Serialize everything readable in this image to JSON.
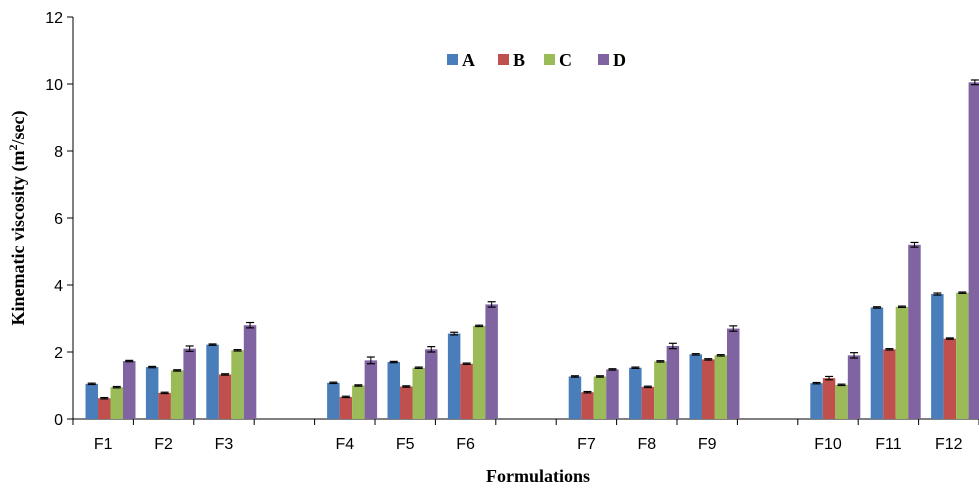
{
  "chart_data": {
    "type": "bar",
    "title": "",
    "xlabel": "Formulations",
    "ylabel_main": "Kinematic viscosity (m",
    "ylabel_sup": "2",
    "ylabel_end": "/sec)",
    "ylim": [
      0,
      12
    ],
    "yticks": [
      "0",
      "2",
      "4",
      "6",
      "8",
      "10",
      "12"
    ],
    "legend_position": "top-center",
    "colors": {
      "A": "#4a7ebb",
      "B": "#c0504d",
      "C": "#9bbb59",
      "D": "#8064a2"
    },
    "categories": [
      "F1",
      "F2",
      "F3",
      "F4",
      "F5",
      "F6",
      "F7",
      "F8",
      "F9",
      "F10",
      "F11",
      "F12"
    ],
    "series": [
      {
        "name": "A",
        "values": [
          1.05,
          1.55,
          2.22,
          1.08,
          1.7,
          2.55,
          1.27,
          1.53,
          1.93,
          1.07,
          3.33,
          3.73
        ]
      },
      {
        "name": "B",
        "values": [
          0.62,
          0.78,
          1.33,
          0.66,
          0.97,
          1.65,
          0.8,
          0.96,
          1.78,
          1.22,
          2.08,
          2.4
        ]
      },
      {
        "name": "C",
        "values": [
          0.95,
          1.45,
          2.05,
          1.0,
          1.53,
          2.78,
          1.27,
          1.72,
          1.9,
          1.02,
          3.35,
          3.77
        ]
      },
      {
        "name": "D",
        "values": [
          1.73,
          2.1,
          2.8,
          1.75,
          2.08,
          3.42,
          1.48,
          2.18,
          2.7,
          1.9,
          5.2,
          10.05
        ]
      }
    ],
    "errors": [
      [
        0.02,
        0.02,
        0.02,
        0.02,
        0.02,
        0.04,
        0.02,
        0.02,
        0.02,
        0.02,
        0.02,
        0.03
      ],
      [
        0.02,
        0.02,
        0.02,
        0.02,
        0.02,
        0.02,
        0.02,
        0.02,
        0.02,
        0.05,
        0.02,
        0.02
      ],
      [
        0.02,
        0.02,
        0.02,
        0.02,
        0.02,
        0.02,
        0.02,
        0.02,
        0.02,
        0.02,
        0.02,
        0.02
      ],
      [
        0.02,
        0.08,
        0.08,
        0.1,
        0.08,
        0.08,
        0.02,
        0.08,
        0.08,
        0.08,
        0.07,
        0.07
      ]
    ]
  }
}
